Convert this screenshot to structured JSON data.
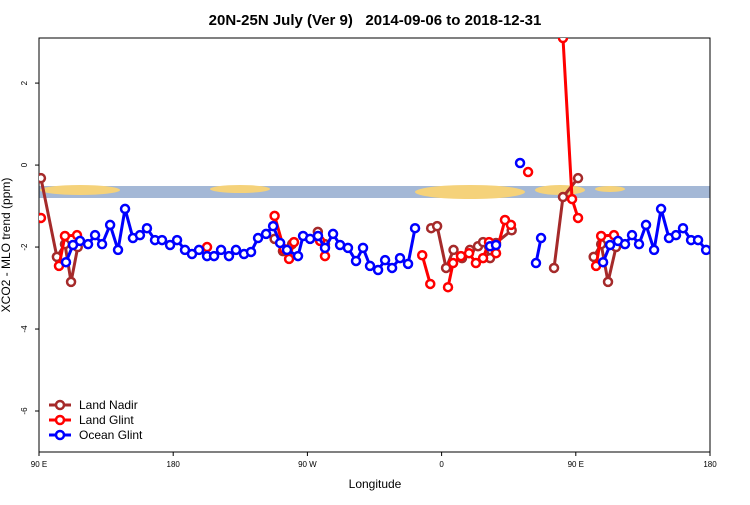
{
  "chart_data": {
    "type": "line",
    "title": "20N-25N July (Ver 9)   2014-09-06 to 2018-12-31",
    "x_label": "Longitude",
    "y_label": "XCO2 - MLO trend (ppm)",
    "xlim": [
      90,
      540
    ],
    "xticks": [
      {
        "value": 90,
        "label": "90 E"
      },
      {
        "value": 180,
        "label": "180"
      },
      {
        "value": 270,
        "label": "90 W"
      },
      {
        "value": 360,
        "label": "0"
      },
      {
        "value": 450,
        "label": "90 E"
      },
      {
        "value": 540,
        "label": "180"
      }
    ],
    "ylim": [
      -7,
      3.1
    ],
    "yticks": [
      -6,
      -4,
      -2,
      0,
      2
    ],
    "legend": "bottom-left",
    "series": [
      {
        "name": "Land Nadir",
        "color": "#a52a2a",
        "x": [
          91.3,
          102,
          107.4,
          111.5,
          116,
          null,
          248,
          253.6,
          259.7,
          null,
          277,
          281.8,
          null,
          353,
          357,
          363,
          368,
          373.7,
          379,
          384.4,
          387.8,
          392.5,
          396.5,
          407,
          null,
          435.4,
          441.4,
          451.5,
          null,
          462,
          467,
          471.6,
          477
        ],
        "values": [
          -0.32,
          -2.24,
          -1.93,
          -2.85,
          -2.0,
          null,
          -1.8,
          -2.1,
          -1.93,
          null,
          -1.63,
          -1.93,
          null,
          -1.54,
          -1.49,
          -2.51,
          -2.07,
          -2.27,
          -2.07,
          -1.98,
          -1.88,
          -2.27,
          -1.9,
          -1.59,
          null,
          -2.51,
          -0.78,
          -0.32,
          null,
          -2.24,
          -1.93,
          -2.85,
          -2.0
        ]
      },
      {
        "name": "Land Glint",
        "color": "#ff0000",
        "x": [
          91.3,
          null,
          103.4,
          107.4,
          115.5,
          null,
          202.7,
          null,
          248,
          254.3,
          257.7,
          261,
          null,
          278.5,
          281.8,
          null,
          347,
          352.4,
          null,
          364.3,
          367.7,
          373,
          378.4,
          383,
          387.8,
          391.8,
          396.5,
          402.5,
          406.5,
          null,
          418,
          null,
          441.4,
          447.5,
          451.5,
          null,
          463.6,
          467,
          475.6
        ],
        "values": [
          -1.29,
          null,
          -2.46,
          -1.73,
          -1.71,
          null,
          -2.0,
          null,
          -1.24,
          -2.05,
          -2.29,
          -1.88,
          null,
          -1.85,
          -2.22,
          null,
          -2.2,
          -2.9,
          null,
          -2.98,
          -2.39,
          -2.22,
          -2.15,
          -2.39,
          -2.27,
          -1.88,
          -2.15,
          -1.34,
          -1.46,
          null,
          -0.17,
          null,
          3.1,
          -0.83,
          -1.29,
          null,
          -2.46,
          -1.73,
          -1.71
        ]
      },
      {
        "name": "Ocean Glint",
        "color": "#0000ff",
        "x": [
          108.1,
          112.8,
          117.5,
          122.9,
          127.6,
          132.3,
          137.7,
          143.0,
          147.7,
          153.0,
          157.7,
          162.4,
          167.8,
          172.5,
          177.9,
          182.6,
          187.9,
          192.6,
          197.3,
          202.7,
          207.4,
          212.1,
          217.4,
          222.1,
          227.5,
          232.2,
          236.9,
          242.3,
          247.0,
          251.7,
          256.3,
          263.7,
          267.1,
          271.8,
          277.1,
          281.8,
          287.2,
          291.9,
          297.2,
          302.6,
          307.3,
          312.0,
          317.4,
          322.1,
          326.8,
          332.1,
          337.5,
          342.2,
          null,
          392.5,
          396.5,
          null,
          412.6,
          null,
          423.3,
          426.7,
          null,
          468.3,
          473.0,
          478.3,
          483.0,
          487.7,
          492.4,
          497.1,
          502.5,
          507.2,
          512.5,
          517.2,
          521.9,
          527.3,
          532.0,
          537.4
        ],
        "values": [
          -2.37,
          -1.95,
          -1.85,
          -1.93,
          -1.71,
          -1.93,
          -1.46,
          -2.07,
          -1.07,
          -1.78,
          -1.71,
          -1.54,
          -1.83,
          -1.83,
          -1.95,
          -1.83,
          -2.07,
          -2.17,
          -2.07,
          -2.22,
          -2.22,
          -2.07,
          -2.22,
          -2.07,
          -2.17,
          -2.12,
          -1.78,
          -1.68,
          -1.49,
          -1.9,
          -2.07,
          -2.22,
          -1.73,
          -1.8,
          -1.73,
          -2.02,
          -1.68,
          -1.95,
          -2.02,
          -2.34,
          -2.02,
          -2.46,
          -2.56,
          -2.32,
          -2.51,
          -2.27,
          -2.41,
          -1.54,
          null,
          -1.98,
          -1.95,
          null,
          0.05,
          null,
          -2.39,
          -1.78,
          null,
          -2.37,
          -1.95,
          -1.85,
          -1.93,
          -1.71,
          -1.93,
          -1.46,
          -2.07,
          -1.07,
          -1.78,
          -1.71,
          -1.54,
          -1.83,
          -1.83,
          -2.07
        ]
      }
    ]
  }
}
